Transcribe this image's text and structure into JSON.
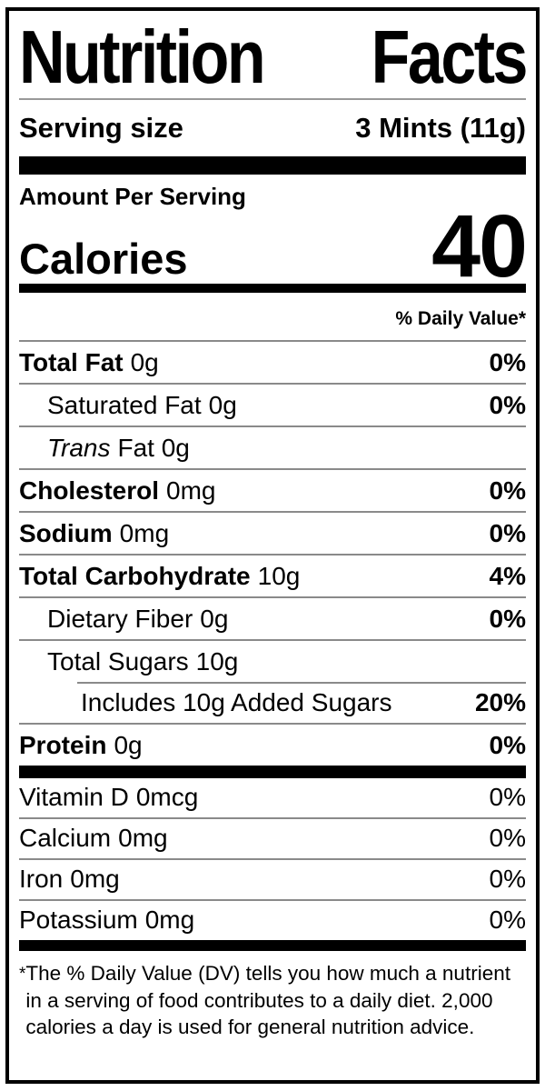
{
  "label": {
    "title_word1": "Nutrition",
    "title_word2": "Facts",
    "serving": {
      "label": "Serving size",
      "value": "3 Mints (11g)"
    },
    "amount_per_serving": "Amount Per Serving",
    "calories": {
      "label": "Calories",
      "value": "40"
    },
    "daily_value_header": "% Daily Value*",
    "rows": [
      {
        "name": "Total Fat",
        "amount": "0g",
        "pct": "0%"
      },
      {
        "name": "Saturated Fat",
        "amount": "0g",
        "pct": "0%"
      },
      {
        "name": "Trans",
        "amount": "Fat 0g",
        "pct": ""
      },
      {
        "name": "Cholesterol",
        "amount": "0mg",
        "pct": "0%"
      },
      {
        "name": "Sodium",
        "amount": "0mg",
        "pct": "0%"
      },
      {
        "name": "Total Carbohydrate",
        "amount": "10g",
        "pct": "4%"
      },
      {
        "name": "Dietary Fiber",
        "amount": "0g",
        "pct": "0%"
      },
      {
        "name": "Total Sugars",
        "amount": "10g",
        "pct": ""
      },
      {
        "name": "Includes 10g Added Sugars",
        "amount": "",
        "pct": "20%"
      },
      {
        "name": "Protein",
        "amount": "0g",
        "pct": "0%"
      }
    ],
    "vitamins": [
      {
        "name": "Vitamin D",
        "amount": "0mcg",
        "pct": "0%"
      },
      {
        "name": "Calcium",
        "amount": "0mg",
        "pct": "0%"
      },
      {
        "name": "Iron",
        "amount": "0mg",
        "pct": "0%"
      },
      {
        "name": "Potassium",
        "amount": "0mg",
        "pct": "0%"
      }
    ],
    "footnote_marker": "*",
    "footnote": "The % Daily Value (DV) tells you how much a nutrient in a serving of food contributes to a daily diet. 2,000 calories a day is used for general nutrition advice.",
    "colors": {
      "text": "#000000",
      "hairline": "#8a8a8a",
      "background": "#ffffff"
    }
  }
}
